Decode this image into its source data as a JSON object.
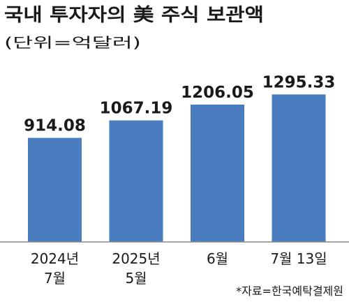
{
  "chart_data": {
    "type": "bar",
    "title": "국내 투자자의 美 주식 보관액",
    "unit": "(단위=억달러)",
    "categories": [
      [
        "2024년",
        "7월"
      ],
      [
        "2025년",
        "5월"
      ],
      [
        "6월"
      ],
      [
        "7월 13일"
      ]
    ],
    "values": [
      914.08,
      1067.19,
      1206.05,
      1295.33
    ],
    "value_labels": [
      "914.08",
      "1067.19",
      "1206.05",
      "1295.33"
    ],
    "ylim": [
      0,
      1500
    ],
    "source": "*자료=한국예탁결제원",
    "bar_color": "#4a7cc0",
    "text_color": "#1a1a1a"
  }
}
